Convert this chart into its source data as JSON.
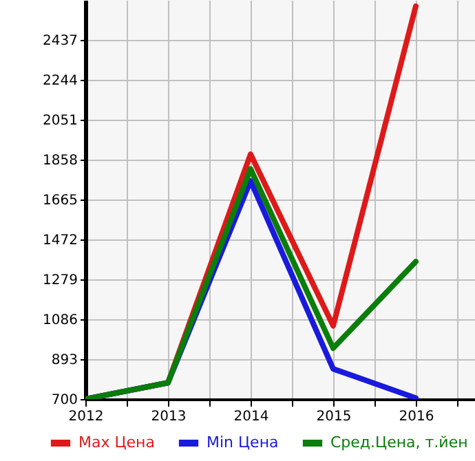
{
  "chart_data": {
    "type": "line",
    "x": [
      2012,
      2013,
      2014,
      2015,
      2016
    ],
    "series": [
      {
        "name": "Max Цена",
        "color": "#dd1a1a",
        "values": [
          700,
          779,
          1884,
          1054,
          2600
        ]
      },
      {
        "name": "Min Цена",
        "color": "#1a1add",
        "values": [
          700,
          779,
          1755,
          846,
          705
        ]
      },
      {
        "name": "Сред.Цена, т.йен",
        "color": "#0b7d0b",
        "values": [
          700,
          779,
          1813,
          946,
          1365
        ]
      }
    ],
    "xlim": [
      2012,
      2017
    ],
    "xticks": [
      2012,
      {
        "value": 2012.5,
        "label": null
      },
      2013,
      {
        "value": 2013.5,
        "label": null
      },
      2014,
      {
        "value": 2014.5,
        "label": null
      },
      2015,
      {
        "value": 2015.5,
        "label": null
      },
      2016,
      {
        "value": 2016.5,
        "label": null
      },
      {
        "value": 2017,
        "label": null
      }
    ],
    "ylim": [
      700,
      2630
    ],
    "yticks": [
      700,
      893,
      1086,
      1279,
      1472,
      1665,
      1858,
      2051,
      2244,
      2437
    ],
    "grid": true,
    "legend": "bottom",
    "marker": "none",
    "line_style": "solid"
  }
}
